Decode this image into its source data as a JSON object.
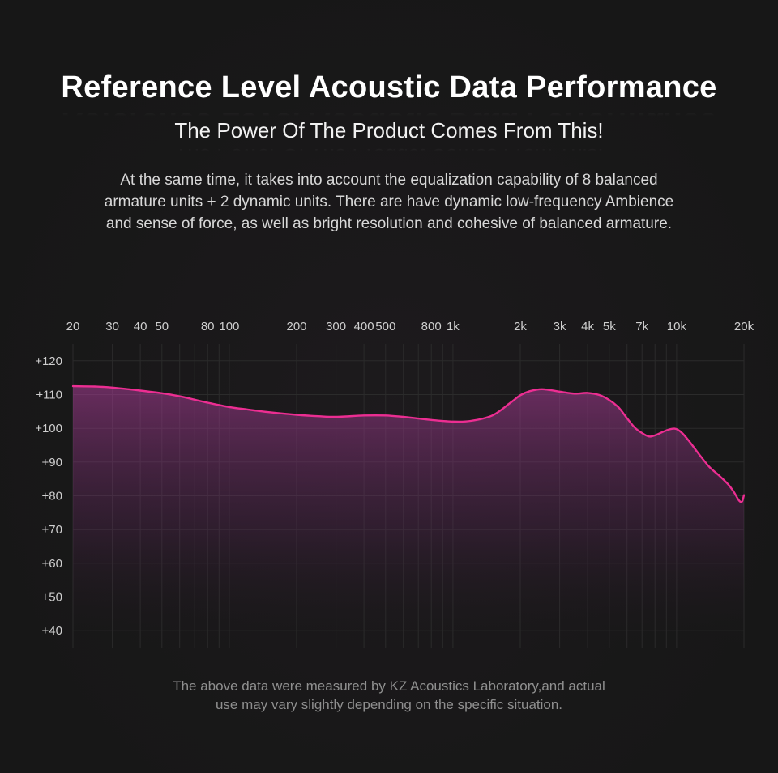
{
  "page": {
    "title": "Reference Level Acoustic Data Performance",
    "subtitle": "The Power Of The Product Comes From This!",
    "description_lines": [
      "At the same time, it takes into account the equalization capability of 8 balanced",
      "armature units + 2 dynamic units. There are have dynamic low-frequency Ambience",
      "and sense of force, as well as bright resolution and cohesive of balanced armature."
    ],
    "footer_lines": [
      "The above data were measured by KZ Acoustics Laboratory,and actual",
      "use may vary slightly depending on the specific situation."
    ],
    "colors": {
      "background": "#181818",
      "accent": "#ec2e92",
      "area_top": "#b23f9e",
      "area_mid": "#6f2c6b",
      "grid": "#2b2b2b",
      "tick_text": "#cfcfcf",
      "body_text": "#d8d8d8",
      "muted_text": "#8f8f8f"
    }
  },
  "chart_data": {
    "type": "line",
    "title": "",
    "xlabel": "",
    "ylabel": "",
    "x_scale": "log",
    "xlim": [
      20,
      20000
    ],
    "ylim": [
      35,
      125
    ],
    "grid": true,
    "legend": "none",
    "x_ticks": [
      {
        "label": "20",
        "freq": 20
      },
      {
        "label": "30",
        "freq": 30
      },
      {
        "label": "40",
        "freq": 40
      },
      {
        "label": "50",
        "freq": 50
      },
      {
        "label": "80",
        "freq": 80
      },
      {
        "label": "100",
        "freq": 100
      },
      {
        "label": "200",
        "freq": 200
      },
      {
        "label": "300",
        "freq": 300
      },
      {
        "label": "400",
        "freq": 400
      },
      {
        "label": "500",
        "freq": 500
      },
      {
        "label": "800",
        "freq": 800
      },
      {
        "label": "1k",
        "freq": 1000
      },
      {
        "label": "2k",
        "freq": 2000
      },
      {
        "label": "3k",
        "freq": 3000
      },
      {
        "label": "4k",
        "freq": 4000
      },
      {
        "label": "5k",
        "freq": 5000
      },
      {
        "label": "7k",
        "freq": 7000
      },
      {
        "label": "10k",
        "freq": 10000
      },
      {
        "label": "20k",
        "freq": 20000
      }
    ],
    "y_ticks": [
      {
        "label": "+120",
        "db": 120
      },
      {
        "label": "+110",
        "db": 110
      },
      {
        "label": "+100",
        "db": 100
      },
      {
        "label": "+90",
        "db": 90
      },
      {
        "label": "+80",
        "db": 80
      },
      {
        "label": "+70",
        "db": 70
      },
      {
        "label": "+60",
        "db": 60
      },
      {
        "label": "+50",
        "db": 50
      },
      {
        "label": "+40",
        "db": 40
      }
    ],
    "grid_vertical_freqs": [
      20,
      30,
      40,
      50,
      60,
      70,
      80,
      90,
      100,
      200,
      300,
      400,
      500,
      600,
      700,
      800,
      900,
      1000,
      2000,
      3000,
      4000,
      5000,
      6000,
      7000,
      8000,
      9000,
      10000,
      20000
    ],
    "series": [
      {
        "name": "frequency-response-db-spl",
        "x": [
          20,
          25,
          30,
          40,
          50,
          60,
          70,
          80,
          100,
          120,
          150,
          200,
          250,
          300,
          400,
          500,
          600,
          700,
          800,
          1000,
          1200,
          1500,
          1800,
          2000,
          2200,
          2500,
          3000,
          3500,
          4000,
          4500,
          5000,
          5500,
          6000,
          6500,
          7000,
          7500,
          8000,
          9000,
          9800,
          10500,
          11500,
          12500,
          14000,
          15500,
          17000,
          18000,
          19000,
          19600,
          20000
        ],
        "y": [
          112.5,
          112.4,
          112.1,
          111.2,
          110.4,
          109.5,
          108.5,
          107.6,
          106.3,
          105.6,
          104.8,
          104.0,
          103.6,
          103.4,
          103.8,
          103.8,
          103.4,
          102.9,
          102.5,
          102.0,
          102.2,
          103.8,
          107.5,
          109.8,
          111.0,
          111.6,
          110.9,
          110.3,
          110.5,
          109.9,
          108.4,
          106.2,
          103.0,
          100.2,
          98.6,
          97.6,
          97.9,
          99.4,
          99.9,
          98.8,
          95.8,
          92.6,
          88.6,
          86.0,
          83.4,
          81.2,
          78.6,
          78.3,
          80.2
        ]
      }
    ]
  }
}
